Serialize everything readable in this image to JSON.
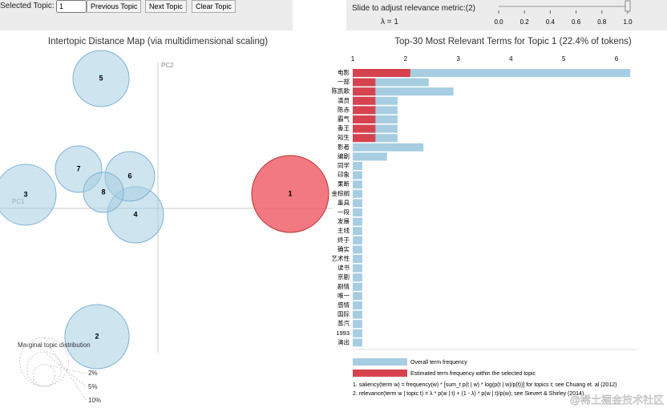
{
  "controls": {
    "selected_label": "Selected Topic:",
    "selected_value": "1",
    "buttons": [
      "Previous Topic",
      "Next Topic",
      "Clear Topic"
    ],
    "slider_label": "Slide to adjust relevance metric:(2)",
    "lambda_label": "λ = 1",
    "slider_lim": [
      0,
      1
    ],
    "slider_value": 1,
    "slider_ticks": [
      {
        "value": 0,
        "label": "0.0"
      },
      0.2,
      0.4,
      0.6,
      0.8,
      {
        "value": 1,
        "label": "1.0"
      }
    ]
  },
  "chart_data": [
    {
      "type": "scatter",
      "title": "Intertopic Distance Map (via multidimensional scaling)",
      "x_label": "PC1",
      "y_label": "PC2",
      "categories": [
        "1",
        "2",
        "3",
        "4",
        "5",
        "6",
        "7",
        "8"
      ],
      "x": [
        1.65,
        -0.76,
        -1.65,
        -0.28,
        -0.71,
        -0.35,
        -0.99,
        -0.68
      ],
      "values": [
        0.18,
        -1.6,
        0.17,
        -0.08,
        1.62,
        0.4,
        0.49,
        0.2
      ],
      "sizes": [
        22.4,
        15.6,
        14.0,
        11.9,
        11.9,
        9.3,
        8.2,
        6.1
      ],
      "color": "#a6cde2",
      "selected_color": "#f0606b",
      "xlim": [
        -1.97,
        2.18
      ],
      "ylim": [
        -1.8,
        2.05
      ],
      "marginal": {
        "title": "Marginal topic distribution",
        "values": [
          2,
          5,
          10
        ],
        "value_labels": [
          "2%",
          "5%",
          "10%"
        ]
      }
    },
    {
      "type": "hbar",
      "title": "Top-30 Most Relevant Terms for Topic 1 (22.4% of tokens)",
      "categories": [
        "电影",
        "一部",
        "陈凯歌",
        "演员",
        "陈赤",
        "霸气",
        "香王",
        "知生",
        "影者",
        "编剧",
        "同学",
        "印象",
        "果断",
        "金棕榈",
        "墨具",
        "一段",
        "发展",
        "主线",
        "终于",
        "确实",
        "艺术性",
        "读书",
        "京剧",
        "剧情",
        "唯一",
        "感情",
        "国际",
        "蒸汽",
        "1993",
        "演出"
      ],
      "series": [
        {
          "name": "Overall term frequency",
          "color": "#a6cde2",
          "values": [
            6.26,
            2.44,
            2.91,
            1.85,
            1.85,
            1.85,
            1.85,
            1.85,
            2.34,
            1.65,
            1.18,
            1.18,
            1.18,
            1.18,
            1.18,
            1.18,
            1.18,
            1.18,
            1.18,
            1.18,
            1.18,
            1.18,
            1.18,
            1.18,
            1.18,
            1.18,
            1.18,
            1.18,
            1.18,
            1.18
          ]
        },
        {
          "name": "Estimated term frequency within the selected topic",
          "color": "#d6434f",
          "values": [
            2.09,
            1.43,
            1.43,
            1.43,
            1.43,
            1.43,
            1.43,
            1.43,
            null,
            null,
            null,
            null,
            null,
            null,
            null,
            null,
            null,
            null,
            null,
            null,
            null,
            null,
            null,
            null,
            null,
            null,
            null,
            null,
            null,
            null
          ]
        }
      ],
      "xlim": [
        1,
        6.3
      ],
      "xticks": [
        1,
        2,
        3,
        4,
        5,
        6
      ],
      "notes": [
        "1. saliency(term w) = frequency(w) * [sum_t p(t | w) * log(p(t | w)/p(t))] for topics t; see Chuang et. al (2012)",
        "2. relevance(term w | topic t) = λ * p(w | t) + (1 - λ) * p(w | t)/p(w); see Sievert & Shirley (2014)"
      ]
    }
  ],
  "watermark": "@稀土掘金技术社区"
}
